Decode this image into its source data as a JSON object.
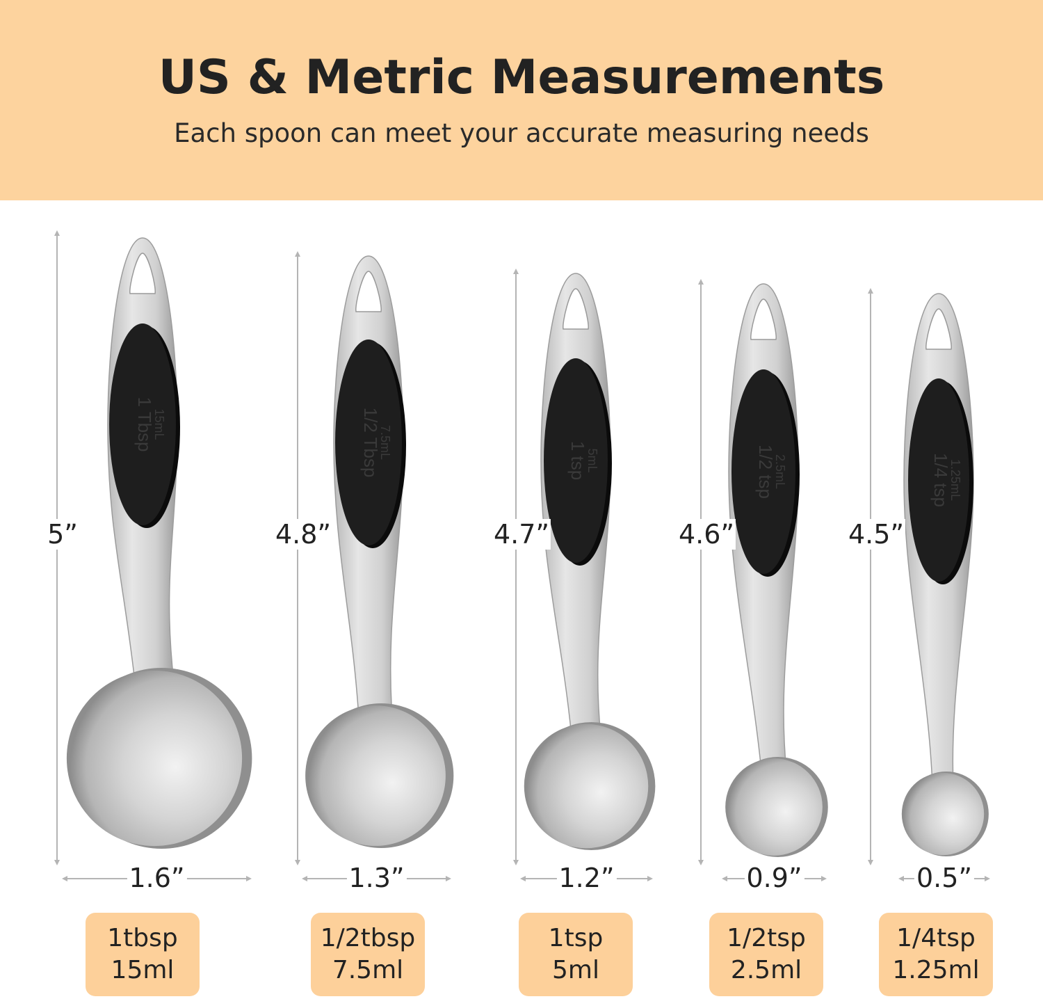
{
  "header": {
    "title": "US & Metric Measurements",
    "subtitle": "Each spoon can meet your accurate measuring needs",
    "background_color": "#fdd39e"
  },
  "badge_color": "#fdd09a",
  "spoons": [
    {
      "length": "5”",
      "width": "1.6”",
      "us": "1tbsp",
      "metric": "15ml",
      "engraving_us": "1 Tbsp",
      "engraving_metric": "15mL"
    },
    {
      "length": "4.8”",
      "width": "1.3”",
      "us": "1/2tbsp",
      "metric": "7.5ml",
      "engraving_us": "1/2 Tbsp",
      "engraving_metric": "7.5mL"
    },
    {
      "length": "4.7”",
      "width": "1.2”",
      "us": "1tsp",
      "metric": "5ml",
      "engraving_us": "1 tsp",
      "engraving_metric": "5mL"
    },
    {
      "length": "4.6”",
      "width": "0.9”",
      "us": "1/2tsp",
      "metric": "2.5ml",
      "engraving_us": "1/2 tsp",
      "engraving_metric": "2.5mL"
    },
    {
      "length": "4.5”",
      "width": "0.5”",
      "us": "1/4tsp",
      "metric": "1.25ml",
      "engraving_us": "1/4 tsp",
      "engraving_metric": "1.25mL"
    }
  ]
}
